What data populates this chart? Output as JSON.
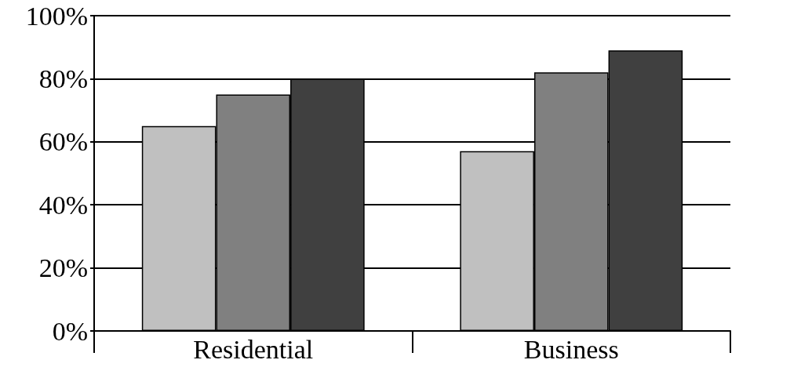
{
  "chart_data": {
    "type": "bar",
    "categories": [
      "Residential",
      "Business"
    ],
    "series": [
      {
        "color": "#c0c0c0",
        "values": [
          65,
          57
        ]
      },
      {
        "color": "#808080",
        "values": [
          75,
          82
        ]
      },
      {
        "color": "#404040",
        "values": [
          80,
          89
        ]
      }
    ],
    "ylim": [
      0,
      100
    ],
    "yticks": [
      {
        "value": 0,
        "label": "0%"
      },
      {
        "value": 20,
        "label": "20%"
      },
      {
        "value": 40,
        "label": "40%"
      },
      {
        "value": 60,
        "label": "60%"
      },
      {
        "value": 80,
        "label": "80%"
      },
      {
        "value": 100,
        "label": "100%"
      }
    ],
    "grid": "y"
  }
}
